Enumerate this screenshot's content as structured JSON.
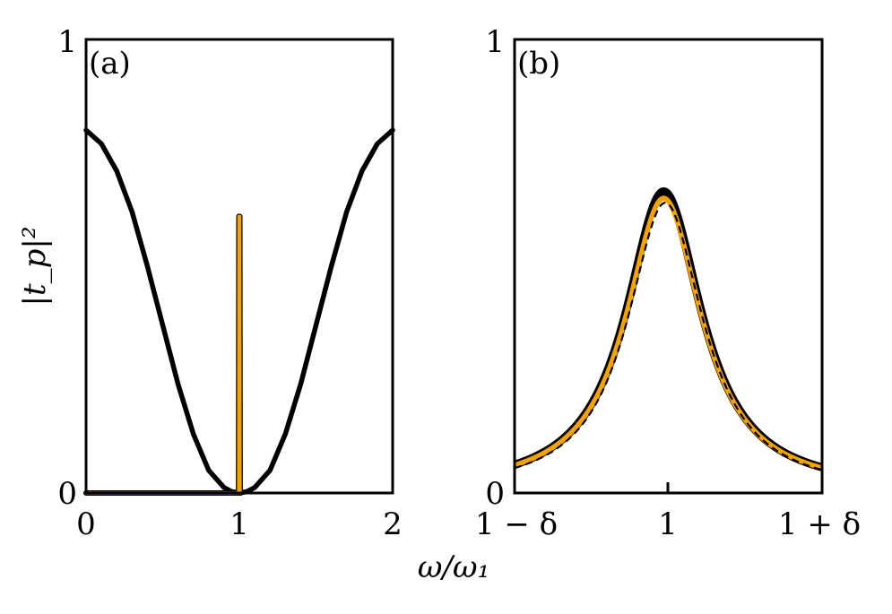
{
  "chart_data": [
    {
      "type": "line",
      "panel_label": "(a)",
      "xlabel": "ω/ω₁",
      "ylabel": "|t_p|²",
      "xlim": [
        0,
        2
      ],
      "ylim": [
        0,
        1
      ],
      "x_ticks": [
        "0",
        "1",
        "2"
      ],
      "y_ticks": [
        "0",
        "1"
      ],
      "grid": false,
      "series": [
        {
          "color": "#000000",
          "style": "solid-thick",
          "x": [
            0,
            0.1,
            0.2,
            0.3,
            0.4,
            0.5,
            0.6,
            0.7,
            0.8,
            0.9,
            0.95,
            1.0,
            1.05,
            1.1,
            1.2,
            1.3,
            1.4,
            1.5,
            1.6,
            1.7,
            1.8,
            1.9,
            2.0
          ],
          "y": [
            0.8,
            0.77,
            0.71,
            0.62,
            0.5,
            0.37,
            0.24,
            0.13,
            0.05,
            0.012,
            0.003,
            0,
            0.003,
            0.012,
            0.05,
            0.13,
            0.24,
            0.37,
            0.5,
            0.62,
            0.71,
            0.77,
            0.8
          ]
        },
        {
          "color": "#f5a300",
          "style": "resonance-spike",
          "x": [
            0,
            0.99,
            0.995,
            0.997,
            1.0,
            1.003,
            1.005,
            1.01
          ],
          "y": [
            0,
            0,
            0,
            0.61,
            0.61,
            0.61,
            0,
            0
          ]
        }
      ]
    },
    {
      "type": "line",
      "panel_label": "(b)",
      "xlabel": "ω/ω₁",
      "xlim": [
        -1,
        1
      ],
      "ylim": [
        0,
        1
      ],
      "x_ticks": [
        "1 − δ",
        "1",
        "1 + δ"
      ],
      "y_ticks": [
        "0",
        "1"
      ],
      "grid": false,
      "series": [
        {
          "color": "#000000",
          "style": "solid-thin",
          "peak_x": -0.03,
          "peak_y": 0.665,
          "half_width": 0.3,
          "baseline": 0.005
        },
        {
          "color": "#f5a300",
          "style": "solid-thick",
          "peak_x": -0.03,
          "peak_y": 0.65,
          "half_width": 0.3,
          "baseline": 0.005
        },
        {
          "color": "#000000",
          "style": "dashed",
          "peak_x": -0.02,
          "peak_y": 0.64,
          "half_width": 0.3,
          "baseline": 0.0
        }
      ]
    }
  ]
}
